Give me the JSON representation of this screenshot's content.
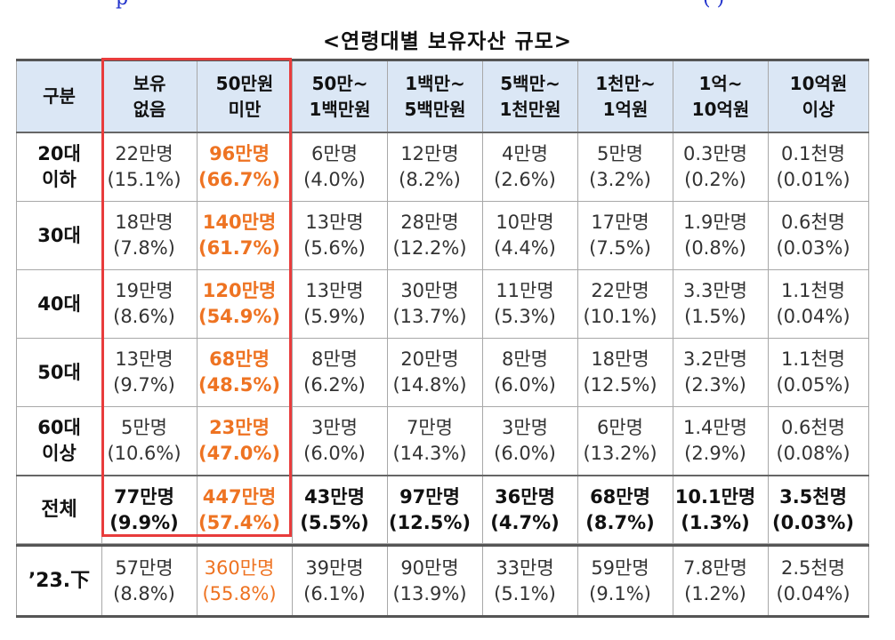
{
  "title": "<연령대별 보유자산 규모>",
  "columns": [
    {
      "l1": "구분",
      "l2": ""
    },
    {
      "l1": "보유",
      "l2": "없음"
    },
    {
      "l1": "50만원",
      "l2": "미만"
    },
    {
      "l1": "50만~",
      "l2": "1백만원"
    },
    {
      "l1": "1백만~",
      "l2": "5백만원"
    },
    {
      "l1": "5백만~",
      "l2": "1천만원"
    },
    {
      "l1": "1천만~",
      "l2": "1억원"
    },
    {
      "l1": "1억~",
      "l2": "10억원"
    },
    {
      "l1": "10억원",
      "l2": "이상"
    }
  ],
  "rows": [
    {
      "label": [
        "20대",
        "이하"
      ],
      "cells": [
        [
          "22만명",
          "(15.1%)"
        ],
        [
          "96만명",
          "(66.7%)"
        ],
        [
          "6만명",
          "(4.0%)"
        ],
        [
          "12만명",
          "(8.2%)"
        ],
        [
          "4만명",
          "(2.6%)"
        ],
        [
          "5만명",
          "(3.2%)"
        ],
        [
          "0.3만명",
          "(0.2%)"
        ],
        [
          "0.1천명",
          "(0.01%)"
        ]
      ]
    },
    {
      "label": [
        "30대",
        ""
      ],
      "cells": [
        [
          "18만명",
          "(7.8%)"
        ],
        [
          "140만명",
          "(61.7%)"
        ],
        [
          "13만명",
          "(5.6%)"
        ],
        [
          "28만명",
          "(12.2%)"
        ],
        [
          "10만명",
          "(4.4%)"
        ],
        [
          "17만명",
          "(7.5%)"
        ],
        [
          "1.9만명",
          "(0.8%)"
        ],
        [
          "0.6천명",
          "(0.03%)"
        ]
      ]
    },
    {
      "label": [
        "40대",
        ""
      ],
      "cells": [
        [
          "19만명",
          "(8.6%)"
        ],
        [
          "120만명",
          "(54.9%)"
        ],
        [
          "13만명",
          "(5.9%)"
        ],
        [
          "30만명",
          "(13.7%)"
        ],
        [
          "11만명",
          "(5.3%)"
        ],
        [
          "22만명",
          "(10.1%)"
        ],
        [
          "3.3만명",
          "(1.5%)"
        ],
        [
          "1.1천명",
          "(0.04%)"
        ]
      ]
    },
    {
      "label": [
        "50대",
        ""
      ],
      "cells": [
        [
          "13만명",
          "(9.7%)"
        ],
        [
          "68만명",
          "(48.5%)"
        ],
        [
          "8만명",
          "(6.2%)"
        ],
        [
          "20만명",
          "(14.8%)"
        ],
        [
          "8만명",
          "(6.0%)"
        ],
        [
          "18만명",
          "(12.5%)"
        ],
        [
          "3.2만명",
          "(2.3%)"
        ],
        [
          "1.1천명",
          "(0.05%)"
        ]
      ]
    },
    {
      "label": [
        "60대",
        "이상"
      ],
      "cells": [
        [
          "5만명",
          "(10.6%)"
        ],
        [
          "23만명",
          "(47.0%)"
        ],
        [
          "3만명",
          "(6.0%)"
        ],
        [
          "7만명",
          "(14.3%)"
        ],
        [
          "3만명",
          "(6.0%)"
        ],
        [
          "6만명",
          "(13.2%)"
        ],
        [
          "1.4만명",
          "(2.9%)"
        ],
        [
          "0.6천명",
          "(0.08%)"
        ]
      ]
    }
  ],
  "total": {
    "label": "전체",
    "cells": [
      [
        "77만명",
        "(9.9%)"
      ],
      [
        "447만명",
        "(57.4%)"
      ],
      [
        "43만명",
        "(5.5%)"
      ],
      [
        "97만명",
        "(12.5%)"
      ],
      [
        "36만명",
        "(4.7%)"
      ],
      [
        "68만명",
        "(8.7%)"
      ],
      [
        "10.1만명",
        "(1.3%)"
      ],
      [
        "3.5천명",
        "(0.03%)"
      ]
    ]
  },
  "prev": {
    "label": "’23.下",
    "cells": [
      [
        "57만명",
        "(8.8%)"
      ],
      [
        "360만명",
        "(55.8%)"
      ],
      [
        "39만명",
        "(6.1%)"
      ],
      [
        "90만명",
        "(13.9%)"
      ],
      [
        "33만명",
        "(5.1%)"
      ],
      [
        "59만명",
        "(9.1%)"
      ],
      [
        "7.8만명",
        "(1.2%)"
      ],
      [
        "2.5천명",
        "(0.04%)"
      ]
    ]
  },
  "colors": {
    "highlight_text": "#ee7322",
    "highlight_box": "#e83c3c",
    "header_bg": "#dbe7f5"
  }
}
